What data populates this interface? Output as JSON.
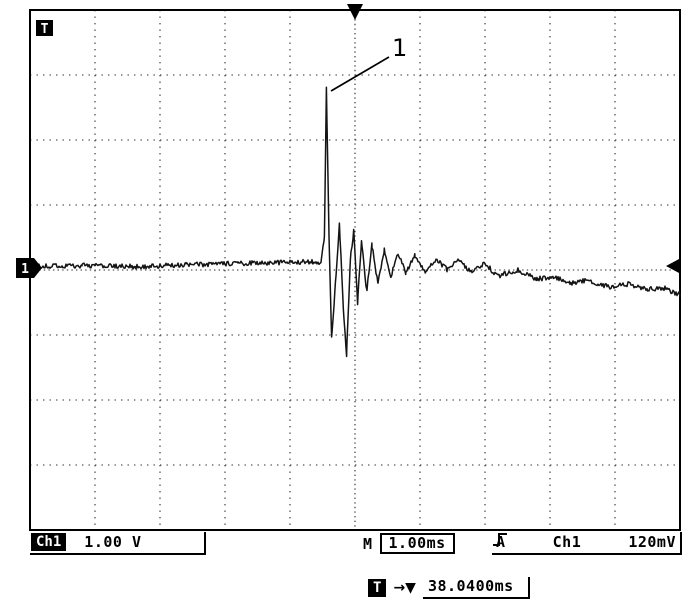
{
  "scope": {
    "top_trigger_marker_label": "T",
    "channel1_marker": "1",
    "annotation_label": "1",
    "readouts": {
      "ch1_label": "Ch1",
      "ch1_scale": "1.00 V",
      "timebase_prefix": "M",
      "timebase": "1.00ms",
      "acq_mode": "A",
      "trigger_source": "Ch1",
      "trigger_slope_icon": "rising-edge",
      "trigger_level": "120mV",
      "trigger_time_label": "T",
      "trigger_time_arrows": "→▼",
      "trigger_time": "38.0400ms"
    }
  },
  "chart_data": {
    "type": "line",
    "title": "Oscilloscope capture: Channel 1 transient spike with decaying ringing",
    "volts_per_div": 1.0,
    "time_per_div_ms": 1.0,
    "divisions": {
      "x": 10,
      "y": 8
    },
    "grid": "dotted graticule",
    "channel1_zero_div": 0,
    "trigger_position_div": 5,
    "trigger_level_mV": 120,
    "trigger_time_readout_ms": 38.04,
    "peak_volts": 2.8,
    "min_volts": -1.3,
    "noise_div": 0.038,
    "keypoints_div": [
      [
        0,
        0.05
      ],
      [
        0.8,
        0.07
      ],
      [
        1.6,
        0.05
      ],
      [
        2.4,
        0.08
      ],
      [
        3.2,
        0.1
      ],
      [
        4.0,
        0.12
      ],
      [
        4.35,
        0.13
      ],
      [
        4.48,
        0.12
      ],
      [
        4.53,
        0.5
      ],
      [
        4.56,
        2.82
      ],
      [
        4.6,
        0.5
      ],
      [
        4.64,
        -1.05
      ],
      [
        4.7,
        -0.2
      ],
      [
        4.76,
        0.72
      ],
      [
        4.82,
        -0.6
      ],
      [
        4.87,
        -1.3
      ],
      [
        4.93,
        0.2
      ],
      [
        4.98,
        0.6
      ],
      [
        5.04,
        -0.5
      ],
      [
        5.1,
        0.45
      ],
      [
        5.18,
        -0.32
      ],
      [
        5.26,
        0.38
      ],
      [
        5.35,
        -0.2
      ],
      [
        5.45,
        0.3
      ],
      [
        5.55,
        -0.1
      ],
      [
        5.66,
        0.26
      ],
      [
        5.78,
        -0.05
      ],
      [
        5.92,
        0.22
      ],
      [
        6.08,
        -0.03
      ],
      [
        6.25,
        0.18
      ],
      [
        6.42,
        0.0
      ],
      [
        6.6,
        0.15
      ],
      [
        6.8,
        -0.04
      ],
      [
        7.0,
        0.1
      ],
      [
        7.2,
        -0.1
      ],
      [
        7.5,
        0.0
      ],
      [
        7.8,
        -0.14
      ],
      [
        8.05,
        -0.1
      ],
      [
        8.3,
        -0.2
      ],
      [
        8.6,
        -0.16
      ],
      [
        8.9,
        -0.26
      ],
      [
        9.2,
        -0.22
      ],
      [
        9.5,
        -0.3
      ],
      [
        9.75,
        -0.28
      ],
      [
        10,
        -0.38
      ]
    ]
  }
}
